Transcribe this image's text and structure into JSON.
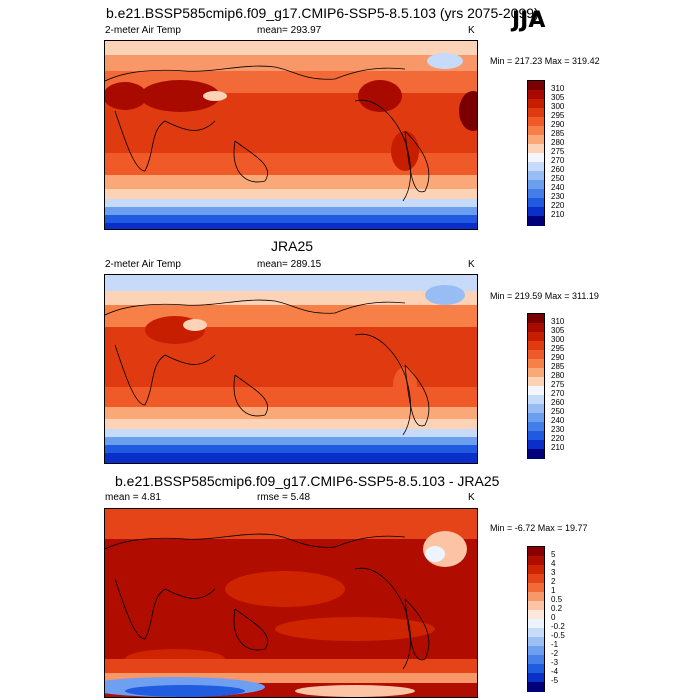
{
  "season": "JJA",
  "panels": [
    {
      "title": "b.e21.BSSP585cmip6.f09_g17.CMIP6-SSP5-8.5.103 (yrs 2075-2099)",
      "left_label": "2-meter Air Temp",
      "center_label": "mean= 293.97",
      "units": "K",
      "minmax": "Min = 217.23 Max = 319.42",
      "colorbar": {
        "labels": [
          "310",
          "305",
          "300",
          "295",
          "290",
          "285",
          "280",
          "275",
          "270",
          "260",
          "250",
          "240",
          "230",
          "220",
          "210"
        ],
        "colors": [
          "#7a0000",
          "#a80a00",
          "#c81e00",
          "#e03a10",
          "#f05a28",
          "#f78048",
          "#fba878",
          "#fdd3b8",
          "#f3f6fd",
          "#c6dafa",
          "#98bdf5",
          "#6c9ef0",
          "#437ee8",
          "#1f5ae0",
          "#0a2fc8",
          "#00007a"
        ]
      },
      "map": {
        "id": "m1"
      }
    },
    {
      "title": "JRA25",
      "left_label": "2-meter Air Temp",
      "center_label": "mean= 289.15",
      "units": "K",
      "minmax": "Min = 219.59 Max = 311.19",
      "colorbar": {
        "labels": [
          "310",
          "305",
          "300",
          "295",
          "290",
          "285",
          "280",
          "275",
          "270",
          "260",
          "250",
          "240",
          "230",
          "220",
          "210"
        ],
        "colors": [
          "#7a0000",
          "#a80a00",
          "#c81e00",
          "#e03a10",
          "#f05a28",
          "#f78048",
          "#fba878",
          "#fdd3b8",
          "#f3f6fd",
          "#c6dafa",
          "#98bdf5",
          "#6c9ef0",
          "#437ee8",
          "#1f5ae0",
          "#0a2fc8",
          "#00007a"
        ]
      },
      "map": {
        "id": "m2"
      }
    },
    {
      "title": "b.e21.BSSP585cmip6.f09_g17.CMIP6-SSP5-8.5.103 - JRA25",
      "left_label": "mean =   4.81",
      "center_label": "rmse =   5.48",
      "units": "K",
      "minmax": "Min =  -6.72 Max =  19.77",
      "colorbar": {
        "labels": [
          "5",
          "4",
          "3",
          "2",
          "1",
          "0.5",
          "0.2",
          "0",
          "-0.2",
          "-0.5",
          "-1",
          "-2",
          "-3",
          "-4",
          "-5"
        ],
        "colors": [
          "#8a0000",
          "#b00c00",
          "#cf2400",
          "#e54418",
          "#f26a38",
          "#f89868",
          "#fcc4a4",
          "#fee8dc",
          "#eef4fe",
          "#c8dcfa",
          "#9cc0f5",
          "#6e9ff0",
          "#4680e8",
          "#205ce0",
          "#0a30c8",
          "#00007a"
        ]
      },
      "map": {
        "id": "m3"
      }
    }
  ]
}
